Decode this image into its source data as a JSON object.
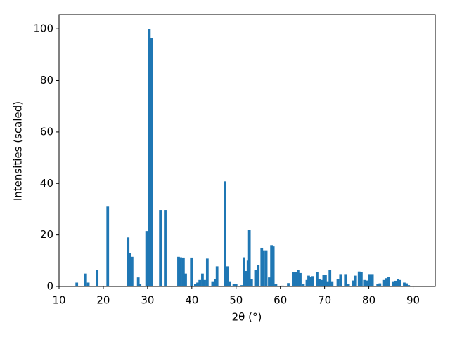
{
  "chart_data": {
    "type": "bar",
    "xlabel": "2θ (°)",
    "ylabel": "Intensities (scaled)",
    "color": "#1f77b4",
    "xlim": [
      10,
      95
    ],
    "ylim": [
      0,
      105.5
    ],
    "xticks": [
      10,
      20,
      30,
      40,
      50,
      60,
      70,
      80,
      90
    ],
    "yticks": [
      0,
      20,
      40,
      60,
      80,
      100
    ],
    "grid": false,
    "x": [
      14.0,
      16.0,
      16.6,
      18.6,
      21.0,
      25.6,
      26.0,
      26.5,
      27.9,
      28.3,
      29.8,
      30.4,
      30.9,
      32.9,
      34.0,
      37.0,
      37.5,
      38.1,
      38.6,
      39.9,
      40.8,
      41.3,
      41.8,
      42.4,
      42.9,
      43.5,
      44.7,
      45.3,
      45.7,
      47.5,
      48.0,
      48.6,
      49.5,
      50.0,
      51.3,
      51.8,
      52.3,
      52.7,
      53.0,
      53.5,
      54.4,
      55.0,
      55.8,
      56.2,
      56.8,
      57.5,
      58.0,
      58.4,
      59.0,
      60.5,
      61.8,
      63.0,
      63.5,
      64.0,
      64.5,
      65.2,
      66.0,
      66.4,
      66.9,
      67.3,
      68.3,
      68.8,
      69.2,
      69.8,
      70.2,
      70.7,
      71.2,
      71.7,
      73.0,
      73.6,
      74.7,
      75.4,
      76.5,
      77.0,
      77.8,
      78.3,
      79.0,
      79.5,
      80.2,
      80.8,
      82.0,
      82.5,
      83.5,
      84.0,
      84.5,
      85.5,
      86.0,
      86.6,
      87.0,
      88.0,
      88.5,
      89.0
    ],
    "values": [
      1.5,
      5,
      1.5,
      6.5,
      31,
      19,
      13,
      11.5,
      3.5,
      1,
      21.5,
      100,
      96.5,
      29.7,
      29.7,
      11.5,
      11.3,
      11.2,
      5,
      11.2,
      1,
      1.5,
      2.5,
      5,
      2.5,
      10.8,
      2,
      3,
      7.8,
      40.8,
      7.8,
      2,
      1,
      1,
      0.5,
      11.3,
      6,
      10,
      22,
      3,
      6.5,
      8.2,
      15,
      14,
      14,
      3.5,
      16,
      15.5,
      1,
      0.3,
      1.3,
      5.5,
      5.5,
      6.3,
      5.2,
      1,
      2.5,
      4.2,
      3.8,
      4,
      5.5,
      3,
      2.5,
      4.5,
      4.4,
      2,
      6.5,
      2,
      2.8,
      4.8,
      4.8,
      1,
      2.3,
      4.2,
      5.8,
      5.5,
      2.5,
      2.3,
      4.8,
      4.8,
      1,
      1.2,
      2.5,
      3.2,
      3.8,
      2,
      2.2,
      3,
      2.5,
      1.5,
      1.2,
      0.5
    ]
  }
}
